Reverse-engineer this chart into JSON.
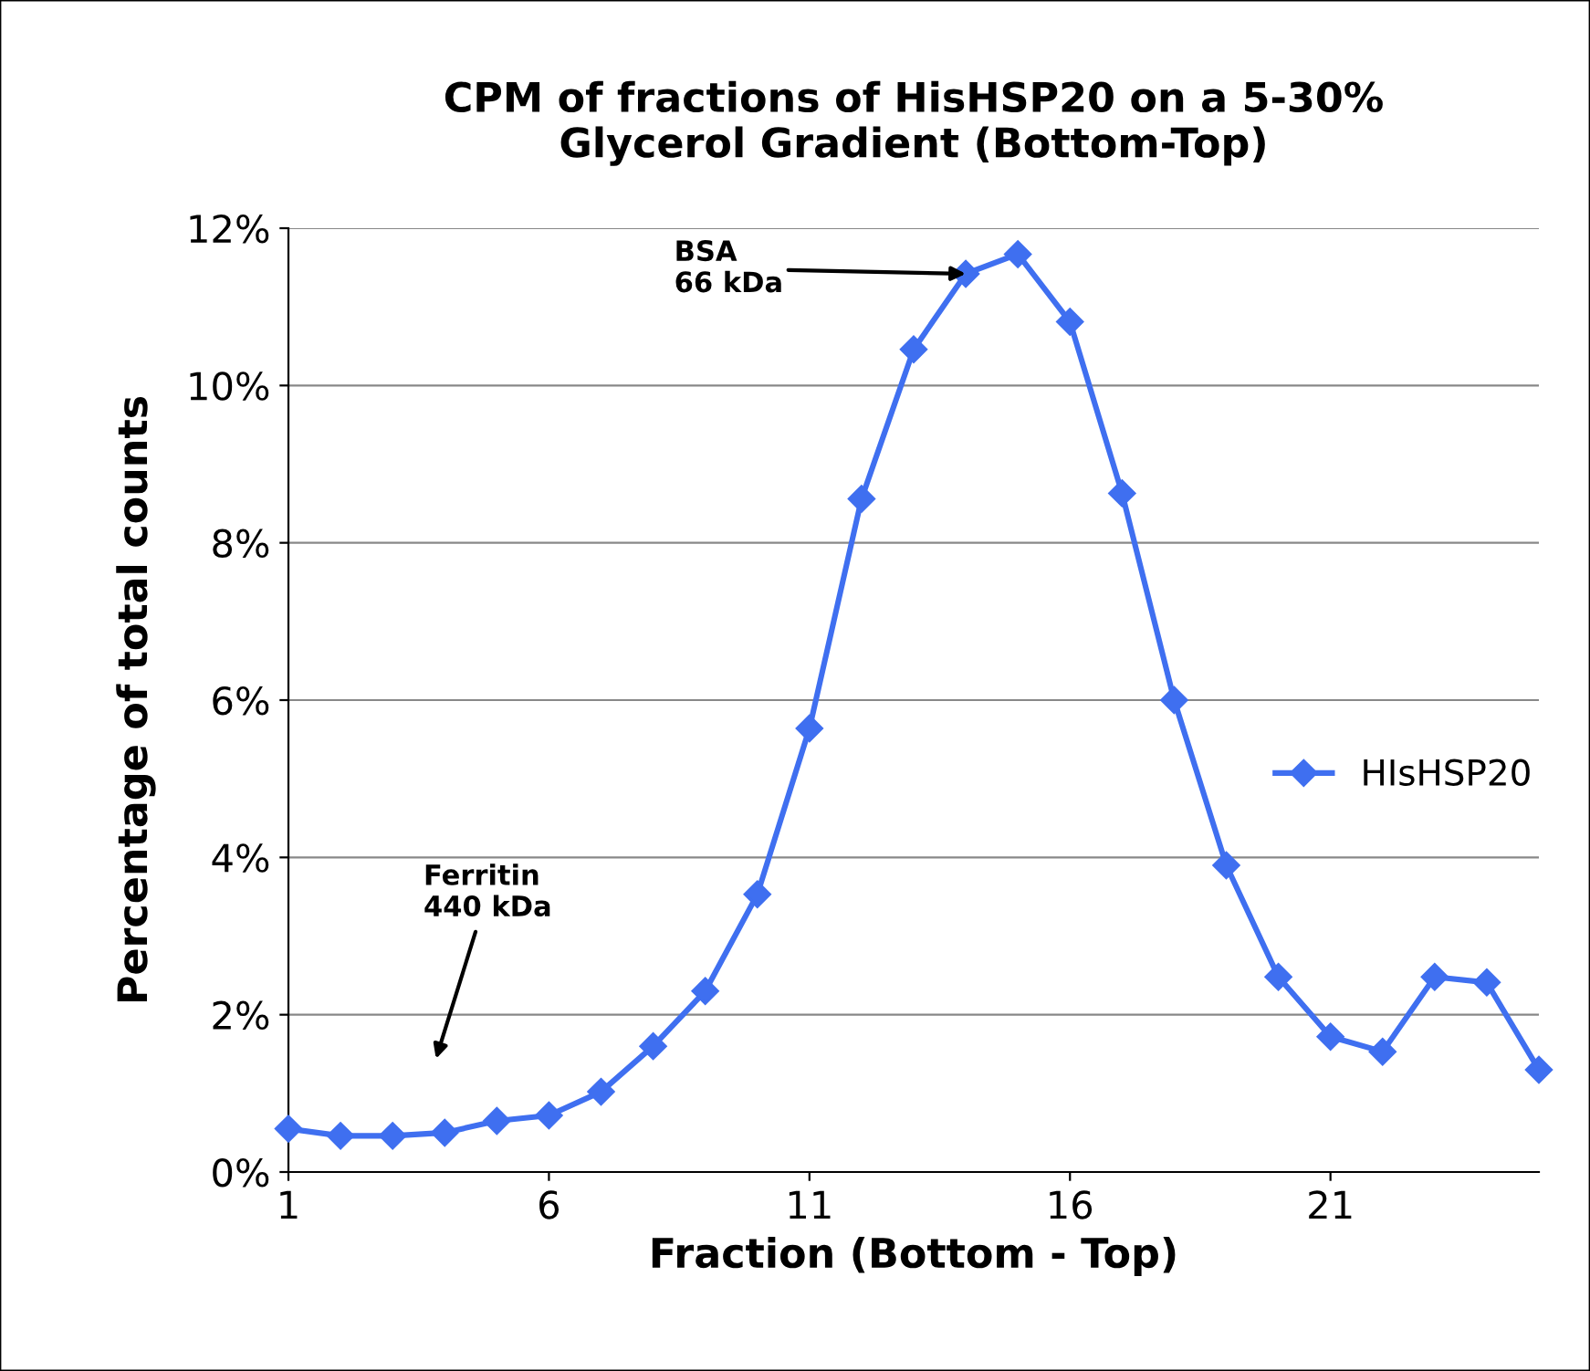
{
  "chart_data": {
    "type": "line",
    "title": "CPM of fractions of HisHSP20 on a 5-30%\nGlycerol Gradient (Bottom-Top)",
    "xlabel": "Fraction (Bottom - Top)",
    "ylabel": "Percentage of total counts",
    "x": [
      1,
      2,
      3,
      4,
      5,
      6,
      7,
      8,
      9,
      10,
      11,
      12,
      13,
      14,
      15,
      16,
      17,
      18,
      19,
      20,
      21,
      22,
      23,
      24,
      25
    ],
    "series": [
      {
        "name": "HIsHSP20",
        "color": "#3f6ff0",
        "values": [
          0.55,
          0.46,
          0.46,
          0.5,
          0.65,
          0.72,
          1.02,
          1.6,
          2.3,
          3.53,
          5.64,
          8.56,
          10.46,
          11.42,
          11.67,
          10.81,
          8.63,
          6.0,
          3.9,
          2.48,
          1.72,
          1.53,
          2.48,
          2.41,
          1.3
        ]
      }
    ],
    "xlim": [
      1,
      25
    ],
    "xticks": [
      1,
      6,
      11,
      16,
      21
    ],
    "ylim": [
      0,
      12
    ],
    "yticks": [
      {
        "value": 0,
        "label": "0%"
      },
      {
        "value": 2,
        "label": "2%"
      },
      {
        "value": 4,
        "label": "4%"
      },
      {
        "value": 6,
        "label": "6%"
      },
      {
        "value": 8,
        "label": "8%"
      },
      {
        "value": 10,
        "label": "10%"
      },
      {
        "value": 12,
        "label": "12%"
      }
    ],
    "grid": "y",
    "legend": "right",
    "marker": "diamond",
    "line_style": "solid",
    "annotations": [
      {
        "text": "BSA\n66 kDa",
        "x": 14,
        "y": 11.42
      },
      "Ferritin\n440 kDa"
    ]
  }
}
